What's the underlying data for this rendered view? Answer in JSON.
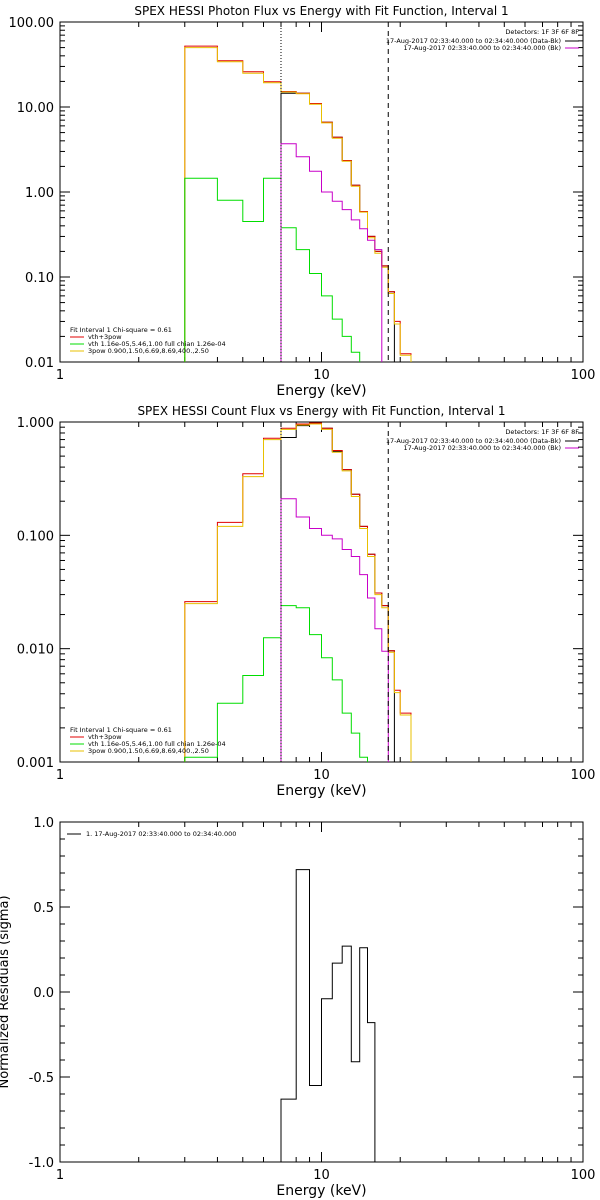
{
  "chart_data": [
    {
      "type": "line",
      "title": "SPEX HESSI Photon Flux vs Energy with Fit Function, Interval 1",
      "xlabel": "Energy (keV)",
      "ylabel": "",
      "xscale": "log",
      "yscale": "log",
      "xlim": [
        1,
        100
      ],
      "ylim": [
        0.01,
        100
      ],
      "x_ticks": [
        "1",
        "10",
        "100"
      ],
      "y_ticks": [
        "0.01",
        "0.10",
        "1.00",
        "10.00",
        "100.00"
      ],
      "vlines": [
        {
          "x": 7.0,
          "style": "dotted"
        },
        {
          "x": 18.0,
          "style": "dashed"
        }
      ],
      "legend_top": {
        "header": "Detectors: 1F 3F 6F 8F",
        "entries": [
          {
            "label": "17-Aug-2017 02:33:40.000 to 02:34:40.000 (Data-Bk)",
            "color": "#000000"
          },
          {
            "label": "17-Aug-2017 02:33:40.000 to 02:34:40.000 (Bk)",
            "color": "#c800c8"
          }
        ]
      },
      "legend_bottom": {
        "header": "Fit Interval 1    Chi-square = 0.61",
        "entries": [
          {
            "label": "vth+3pow",
            "color": "#e00000"
          },
          {
            "label": "vth 1.16e-05,5.46,1.00  full chian 1.26e-04",
            "color": "#00dd00"
          },
          {
            "label": "3pow 0.900,1.50,6.69,8.69,400.,2.50",
            "color": "#e8c000"
          }
        ]
      },
      "edges": [
        3,
        4,
        5,
        6,
        7,
        8,
        9,
        10,
        11,
        12,
        13,
        14,
        15,
        16,
        17,
        18,
        19,
        20,
        22
      ],
      "series": [
        {
          "name": "Data-Bk",
          "color": "#000000",
          "values": [
            null,
            null,
            null,
            null,
            14.5,
            14.5,
            11.0,
            6.6,
            4.4,
            2.35,
            1.2,
            0.59,
            0.3,
            0.2,
            0.135,
            0.067,
            null,
            null
          ]
        },
        {
          "name": "vth+3pow",
          "color": "#e00000",
          "values": [
            52,
            35,
            26,
            19.8,
            15.2,
            14.5,
            11.0,
            6.6,
            4.4,
            2.35,
            1.2,
            0.59,
            0.3,
            0.2,
            0.135,
            0.067,
            0.03,
            0.0125
          ]
        },
        {
          "name": "3pow",
          "color": "#e8c000",
          "values": [
            50,
            34,
            25,
            19.3,
            15.0,
            14.3,
            10.8,
            6.5,
            4.3,
            2.3,
            1.17,
            0.58,
            0.29,
            0.19,
            0.13,
            0.064,
            0.028,
            0.012
          ]
        },
        {
          "name": "vth",
          "color": "#00dd00",
          "values": [
            1.45,
            0.8,
            0.45,
            1.45,
            0.38,
            0.21,
            0.11,
            0.06,
            0.032,
            0.02,
            0.013,
            null,
            null,
            null,
            null,
            null,
            null,
            null
          ]
        },
        {
          "name": "Bk",
          "color": "#c800c8",
          "values": [
            null,
            null,
            null,
            null,
            3.7,
            2.6,
            1.75,
            1.0,
            0.78,
            0.62,
            0.47,
            0.37,
            0.27,
            0.21,
            null,
            null,
            null,
            null
          ]
        }
      ]
    },
    {
      "type": "line",
      "title": "SPEX HESSI Count Flux vs Energy with Fit Function, Interval 1",
      "xlabel": "Energy (keV)",
      "ylabel": "",
      "xscale": "log",
      "yscale": "log",
      "xlim": [
        1,
        100
      ],
      "ylim": [
        0.001,
        1
      ],
      "x_ticks": [
        "1",
        "10",
        "100"
      ],
      "y_ticks": [
        "0.001",
        "0.010",
        "0.100",
        "1.000"
      ],
      "vlines": [
        {
          "x": 7.0,
          "style": "dotted"
        },
        {
          "x": 18.0,
          "style": "dashed"
        }
      ],
      "legend_top": {
        "header": "Detectors: 1F 3F 6F 8F",
        "entries": [
          {
            "label": "17-Aug-2017 02:33:40.000 to 02:34:40.000 (Data-Bk)",
            "color": "#000000"
          },
          {
            "label": "17-Aug-2017 02:33:40.000 to 02:34:40.000 (Bk)",
            "color": "#c800c8"
          }
        ]
      },
      "legend_bottom": {
        "header": "Fit Interval 1    Chi-square = 0.61",
        "entries": [
          {
            "label": "vth+3pow",
            "color": "#e00000"
          },
          {
            "label": "vth 1.16e-05,5.46,1.00  full chian 1.26e-04",
            "color": "#00dd00"
          },
          {
            "label": "3pow 0.900,1.50,6.69,8.69,400.,2.50",
            "color": "#e8c000"
          }
        ]
      },
      "edges": [
        3,
        4,
        5,
        6,
        7,
        8,
        9,
        10,
        11,
        12,
        13,
        14,
        15,
        16,
        17,
        18,
        19,
        20,
        22
      ],
      "series": [
        {
          "name": "Data-Bk",
          "color": "#000000",
          "values": [
            null,
            null,
            null,
            null,
            0.73,
            0.93,
            0.98,
            0.88,
            0.55,
            0.38,
            0.23,
            0.12,
            0.068,
            0.031,
            0.024,
            0.0096,
            null,
            null
          ]
        },
        {
          "name": "vth+3pow",
          "color": "#e00000",
          "values": [
            0.026,
            0.13,
            0.35,
            0.72,
            0.88,
            0.96,
            0.98,
            0.88,
            0.56,
            0.38,
            0.23,
            0.12,
            0.068,
            0.031,
            0.024,
            0.0096,
            0.0043,
            0.0027
          ]
        },
        {
          "name": "3pow",
          "color": "#e8c000",
          "values": [
            0.025,
            0.12,
            0.33,
            0.7,
            0.86,
            0.94,
            0.96,
            0.86,
            0.54,
            0.37,
            0.22,
            0.115,
            0.065,
            0.03,
            0.023,
            0.0093,
            0.0041,
            0.0026
          ]
        },
        {
          "name": "vth",
          "color": "#00dd00",
          "values": [
            0.0011,
            0.0033,
            0.0058,
            0.0125,
            0.024,
            0.023,
            0.0133,
            0.0083,
            0.0053,
            0.0027,
            0.0018,
            0.0011,
            null,
            null,
            null,
            null,
            null,
            null
          ]
        },
        {
          "name": "Bk",
          "color": "#c800c8",
          "values": [
            null,
            null,
            null,
            null,
            0.21,
            0.145,
            0.115,
            0.1,
            0.093,
            0.075,
            0.065,
            0.045,
            0.028,
            0.015,
            0.0095,
            null,
            null,
            null
          ]
        }
      ]
    },
    {
      "type": "line",
      "title": "",
      "xlabel": "Energy (keV)",
      "ylabel": "Normalized Residuals (sigma)",
      "xscale": "log",
      "yscale": "linear",
      "xlim": [
        1,
        100
      ],
      "ylim": [
        -1.0,
        1.0
      ],
      "x_ticks": [
        "1",
        "10",
        "100"
      ],
      "y_ticks": [
        "-1.0",
        "-0.5",
        "0.0",
        "0.5",
        "1.0"
      ],
      "legend_top": {
        "entries": [
          {
            "label": "1. 17-Aug-2017 02:33:40.000 to 02:34:40.000",
            "color": "#000000"
          }
        ]
      },
      "edges": [
        7,
        8,
        9,
        10,
        11,
        12,
        13,
        14,
        15,
        16,
        17,
        18
      ],
      "series": [
        {
          "name": "1. 17-Aug-2017 02:33:40.000 to 02:34:40.000",
          "color": "#000000",
          "values": [
            -0.63,
            0.72,
            -0.55,
            -0.04,
            0.17,
            0.27,
            -0.41,
            0.26,
            -0.18,
            -1.0,
            -1.0
          ]
        }
      ]
    }
  ]
}
